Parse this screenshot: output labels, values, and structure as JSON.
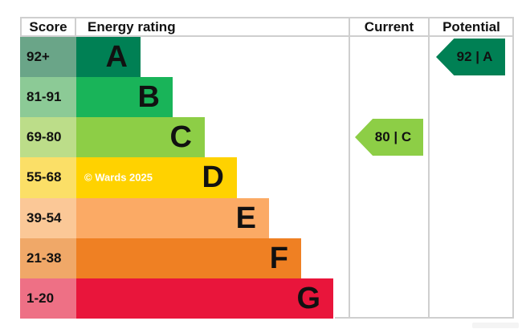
{
  "table": {
    "headers": {
      "score": "Score",
      "energy_rating": "Energy rating",
      "current": "Current",
      "potential": "Potential"
    },
    "bands": [
      {
        "letter": "A",
        "score_range": "92+",
        "bar_color": "#008054",
        "score_color": "#6aa588"
      },
      {
        "letter": "B",
        "score_range": "81-91",
        "bar_color": "#19b459",
        "score_color": "#8cca96"
      },
      {
        "letter": "C",
        "score_range": "69-80",
        "bar_color": "#8dce46",
        "score_color": "#bcdd89"
      },
      {
        "letter": "D",
        "score_range": "55-68",
        "bar_color": "#ffd200",
        "score_color": "#fbdf67"
      },
      {
        "letter": "E",
        "score_range": "39-54",
        "bar_color": "#fbaa65",
        "score_color": "#fbc897"
      },
      {
        "letter": "F",
        "score_range": "21-38",
        "bar_color": "#ef8023",
        "score_color": "#f0a868"
      },
      {
        "letter": "G",
        "score_range": "1-20",
        "bar_color": "#e9153b",
        "score_color": "#ee7085"
      }
    ],
    "current": {
      "value": "80",
      "band": "C",
      "label": "80 | C",
      "color": "#8dce46"
    },
    "potential": {
      "value": "92",
      "band": "A",
      "label": "92 | A",
      "color": "#008054"
    },
    "watermark": "© Wards 2025"
  },
  "chart_data": {
    "type": "bar",
    "orientation": "horizontal",
    "title": "Energy rating",
    "categories": [
      "A",
      "B",
      "C",
      "D",
      "E",
      "F",
      "G"
    ],
    "score_ranges": [
      "92+",
      "81-91",
      "69-80",
      "55-68",
      "39-54",
      "21-38",
      "1-20"
    ],
    "bar_lengths_relative": [
      1,
      1.5,
      2,
      2.5,
      3,
      3.5,
      4
    ],
    "band_colors": [
      "#008054",
      "#19b459",
      "#8dce46",
      "#ffd200",
      "#fbaa65",
      "#ef8023",
      "#e9153b"
    ],
    "score_cell_colors": [
      "#6aa588",
      "#8cca96",
      "#bcdd89",
      "#fbdf67",
      "#fbc897",
      "#f0a868",
      "#ee7085"
    ],
    "current": {
      "score": 80,
      "band": "C"
    },
    "potential": {
      "score": 92,
      "band": "A"
    },
    "legend_position": "none",
    "grid": false
  }
}
